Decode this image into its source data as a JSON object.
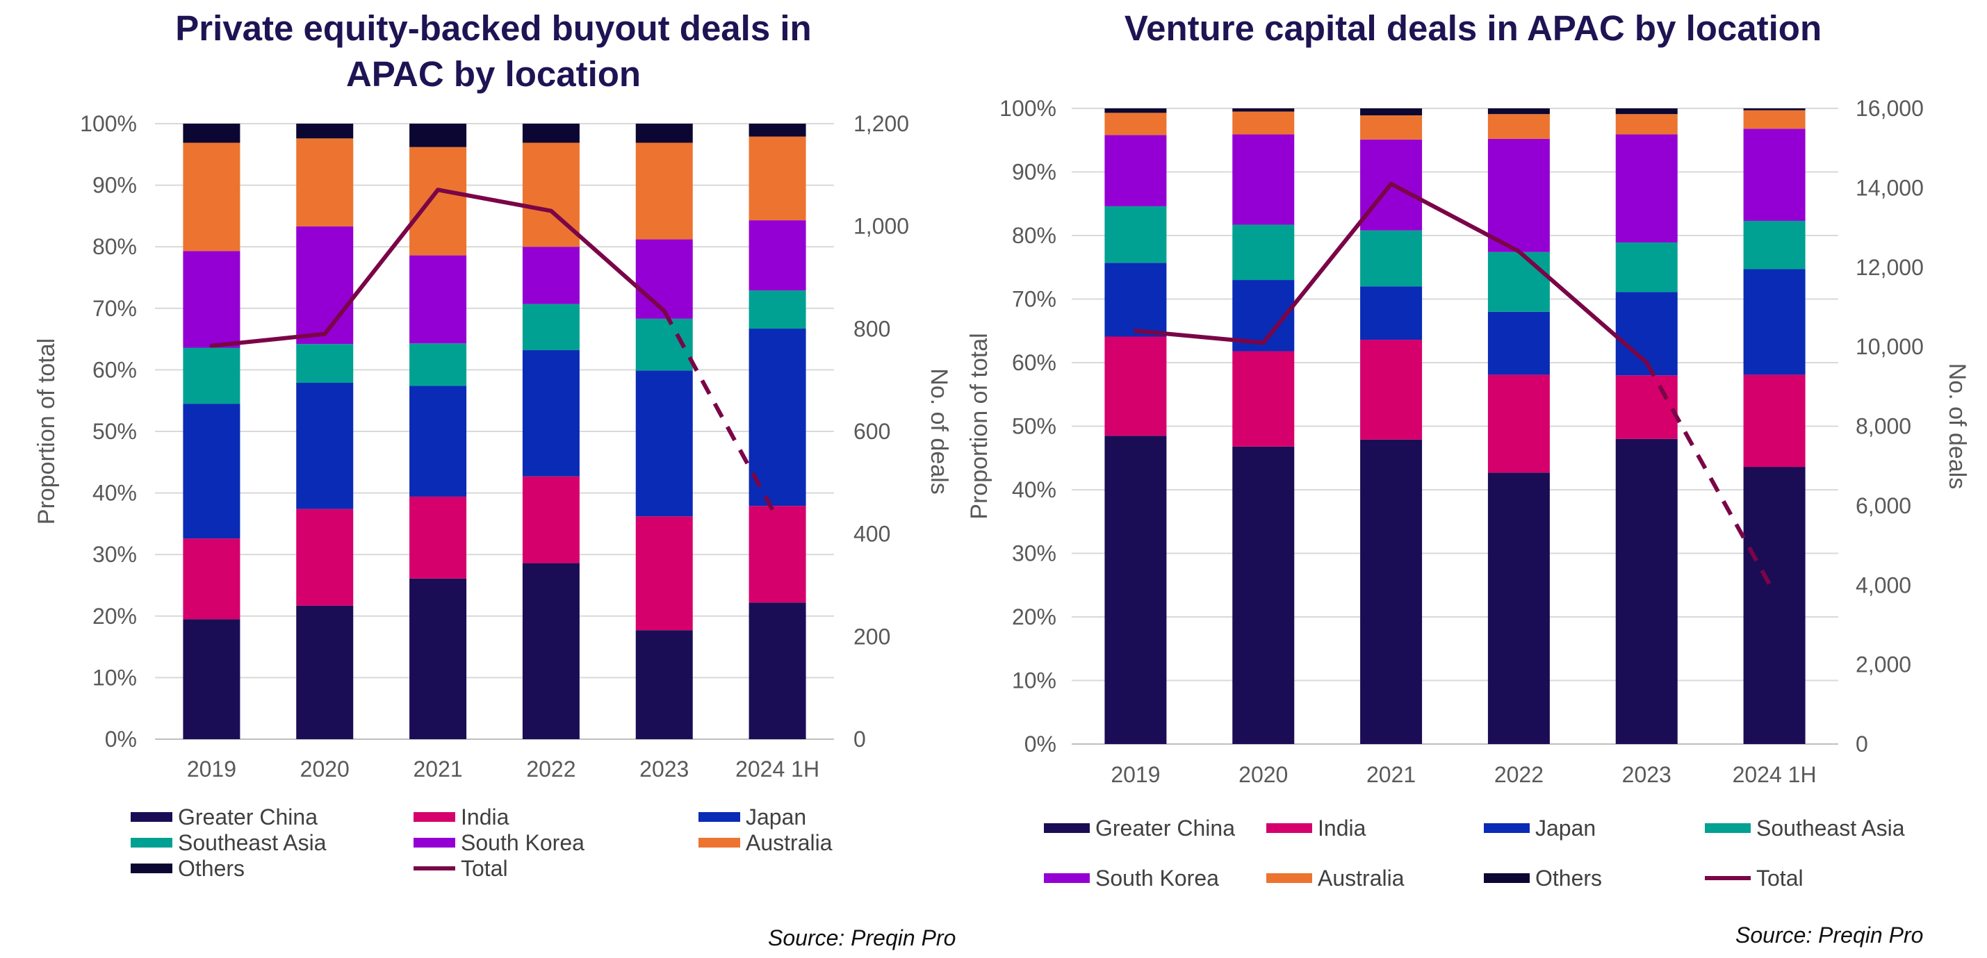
{
  "chart_data": [
    {
      "type": "bar",
      "stacked": true,
      "title": "Private equity-backed buyout deals in APAC by location",
      "title_lines": [
        "Private equity-backed buyout deals in",
        "APAC by location"
      ],
      "categories": [
        "2019",
        "2020",
        "2021",
        "2022",
        "2023",
        "2024 1H"
      ],
      "ylabel": "Proportion of total",
      "y2label": "No. of deals",
      "ylim": [
        0,
        100
      ],
      "y2lim": [
        0,
        1200
      ],
      "yticks": [
        "0%",
        "10%",
        "20%",
        "30%",
        "40%",
        "50%",
        "60%",
        "70%",
        "80%",
        "90%",
        "100%"
      ],
      "y2ticks": [
        "0",
        "200",
        "400",
        "600",
        "800",
        "1,000",
        "1,200"
      ],
      "grid": true,
      "legend_position": "bottom",
      "series": [
        {
          "name": "Greater China",
          "color": "#1b0d55",
          "values": [
            19.5,
            21.7,
            26.1,
            28.6,
            17.7,
            22.2
          ]
        },
        {
          "name": "India",
          "color": "#d5006c",
          "values": [
            13.1,
            15.7,
            13.3,
            14.1,
            18.5,
            15.7
          ]
        },
        {
          "name": "Japan",
          "color": "#0a2bb5",
          "values": [
            21.9,
            20.5,
            18.0,
            20.5,
            23.7,
            28.8
          ]
        },
        {
          "name": "Southeast Asia",
          "color": "#00a192",
          "values": [
            9.1,
            6.3,
            6.9,
            7.5,
            8.4,
            6.2
          ]
        },
        {
          "name": "South Korea",
          "color": "#9400d3",
          "values": [
            15.7,
            19.1,
            14.3,
            9.3,
            12.9,
            11.4
          ]
        },
        {
          "name": "Australia",
          "color": "#ec7430",
          "values": [
            17.6,
            14.3,
            17.6,
            16.9,
            15.7,
            13.6
          ]
        },
        {
          "name": "Others",
          "color": "#0c0633",
          "values": [
            3.1,
            2.4,
            3.8,
            3.1,
            3.1,
            2.1
          ]
        }
      ],
      "line": {
        "name": "Total",
        "color": "#7a0547",
        "axis": "right",
        "values": [
          767,
          790,
          1071,
          1030,
          835,
          430
        ],
        "dashed_from_index": 4
      },
      "legend_columns": 3,
      "source": "Source: Preqin Pro"
    },
    {
      "type": "bar",
      "stacked": true,
      "title": "Venture capital deals in APAC by location",
      "title_lines": [
        "Venture capital deals in APAC by location"
      ],
      "categories": [
        "2019",
        "2020",
        "2021",
        "2022",
        "2023",
        "2024 1H"
      ],
      "ylabel": "Proportion of total",
      "y2label": "No. of deals",
      "ylim": [
        0,
        100
      ],
      "y2lim": [
        0,
        16000
      ],
      "yticks": [
        "0%",
        "10%",
        "20%",
        "30%",
        "40%",
        "50%",
        "60%",
        "70%",
        "80%",
        "90%",
        "100%"
      ],
      "y2ticks": [
        "0",
        "2,000",
        "4,000",
        "6,000",
        "8,000",
        "10,000",
        "12,000",
        "14,000",
        "16,000"
      ],
      "grid": true,
      "legend_position": "bottom",
      "series": [
        {
          "name": "Greater China",
          "color": "#1b0d55",
          "values": [
            48.5,
            46.8,
            47.9,
            42.7,
            48.0,
            43.6
          ]
        },
        {
          "name": "India",
          "color": "#d5006c",
          "values": [
            15.6,
            15.0,
            15.7,
            15.4,
            10.0,
            14.5
          ]
        },
        {
          "name": "Japan",
          "color": "#0a2bb5",
          "values": [
            11.6,
            11.2,
            8.4,
            9.9,
            13.1,
            16.6
          ]
        },
        {
          "name": "Southeast Asia",
          "color": "#00a192",
          "values": [
            8.9,
            8.7,
            8.8,
            9.4,
            7.8,
            7.6
          ]
        },
        {
          "name": "South Korea",
          "color": "#9400d3",
          "values": [
            11.2,
            14.2,
            14.3,
            17.8,
            17.0,
            14.5
          ]
        },
        {
          "name": "Australia",
          "color": "#ec7430",
          "values": [
            3.5,
            3.6,
            3.8,
            3.9,
            3.2,
            2.9
          ]
        },
        {
          "name": "Others",
          "color": "#0c0633",
          "values": [
            0.7,
            0.5,
            1.1,
            0.9,
            0.9,
            0.3
          ]
        }
      ],
      "line": {
        "name": "Total",
        "color": "#7a0547",
        "axis": "right",
        "values": [
          10400,
          10100,
          14100,
          12400,
          9600,
          3800
        ],
        "dashed_from_index": 4
      },
      "legend_columns": 4,
      "source": "Source: Preqin Pro"
    }
  ]
}
